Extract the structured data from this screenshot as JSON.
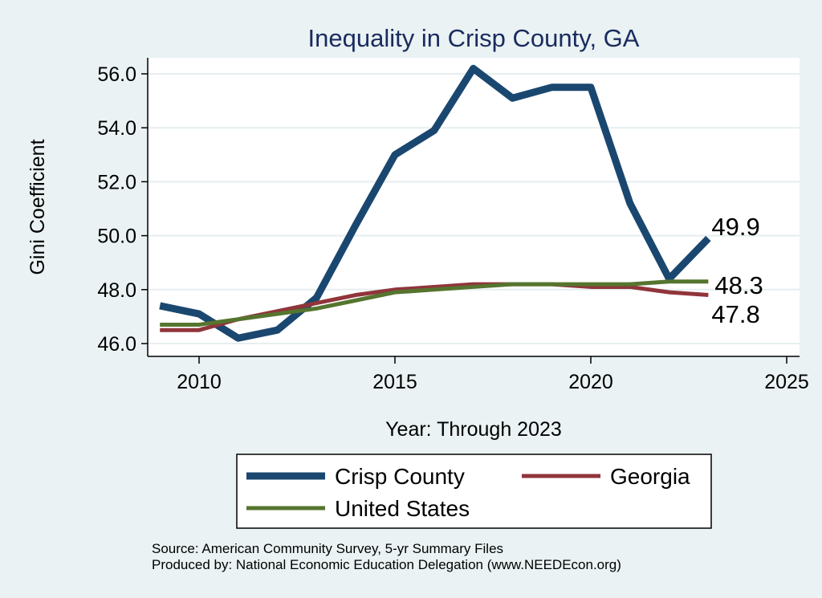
{
  "chart_data": {
    "type": "line",
    "title": "Inequality in Crisp County, GA",
    "xlabel": "Year: Through 2023",
    "ylabel": "Gini Coefficient",
    "xlim": [
      2008.5,
      2025
    ],
    "ylim": [
      45.6,
      56.6
    ],
    "grid": true,
    "x_ticks": [
      "2010",
      "2015",
      "2020",
      "2025"
    ],
    "y_ticks": [
      "46.0",
      "48.0",
      "50.0",
      "52.0",
      "54.0",
      "56.0"
    ],
    "x": [
      2009,
      2010,
      2011,
      2012,
      2013,
      2014,
      2015,
      2016,
      2017,
      2018,
      2019,
      2020,
      2021,
      2022,
      2023
    ],
    "series": [
      {
        "name": "Crisp County",
        "color": "#1a476f",
        "values": [
          47.4,
          47.1,
          46.2,
          46.5,
          47.7,
          50.4,
          53.0,
          53.9,
          56.2,
          55.1,
          55.5,
          55.5,
          51.2,
          48.4,
          49.9
        ],
        "end_label": "49.9"
      },
      {
        "name": "Georgia",
        "color": "#90353b",
        "values": [
          46.5,
          46.5,
          46.9,
          47.2,
          47.5,
          47.8,
          48.0,
          48.1,
          48.2,
          48.2,
          48.2,
          48.1,
          48.1,
          47.9,
          47.8
        ],
        "end_label": "47.8"
      },
      {
        "name": "United States",
        "color": "#55752f",
        "values": [
          46.7,
          46.7,
          46.9,
          47.1,
          47.3,
          47.6,
          47.9,
          48.0,
          48.1,
          48.2,
          48.2,
          48.2,
          48.2,
          48.3,
          48.3
        ],
        "end_label": "48.3"
      }
    ]
  },
  "legend": {
    "items": [
      "Crisp County",
      "Georgia",
      "United States"
    ]
  },
  "footer": {
    "source": "Source: American Community Survey, 5-yr Summary Files",
    "produced": "Produced by: National Economic Education Delegation (www.NEEDEcon.org)"
  }
}
